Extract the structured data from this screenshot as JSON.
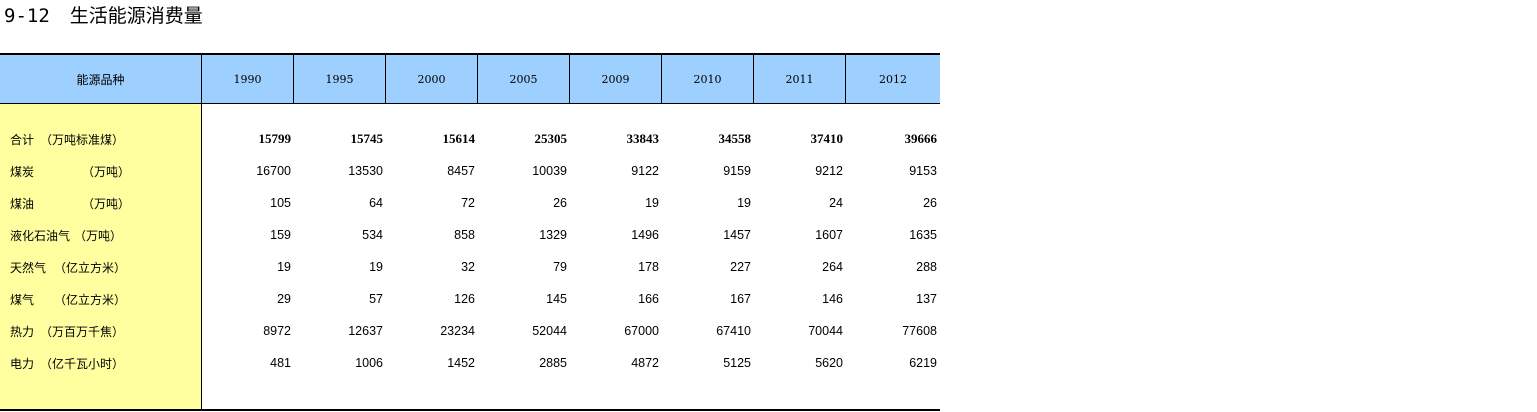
{
  "title": {
    "number": "9-12",
    "text": "生活能源消费量"
  },
  "table": {
    "corner": "能源品种",
    "years": [
      "1990",
      "1995",
      "2000",
      "2005",
      "2009",
      "2010",
      "2011",
      "2012"
    ],
    "rows": [
      {
        "name": "合计",
        "unit": "（万吨标准煤）",
        "values": [
          "15799",
          "15745",
          "15614",
          "25305",
          "33843",
          "34558",
          "37410",
          "39666"
        ]
      },
      {
        "name": "煤炭",
        "unit": "（万吨）",
        "values": [
          "16700",
          "13530",
          "8457",
          "10039",
          "9122",
          "9159",
          "9212",
          "9153"
        ]
      },
      {
        "name": "煤油",
        "unit": "（万吨）",
        "values": [
          "105",
          "64",
          "72",
          "26",
          "19",
          "19",
          "24",
          "26"
        ]
      },
      {
        "name": "液化石油气",
        "unit": "（万吨）",
        "values": [
          "159",
          "534",
          "858",
          "1329",
          "1496",
          "1457",
          "1607",
          "1635"
        ]
      },
      {
        "name": "天然气",
        "unit": "（亿立方米）",
        "values": [
          "19",
          "19",
          "32",
          "79",
          "178",
          "227",
          "264",
          "288"
        ]
      },
      {
        "name": "煤气",
        "unit": "（亿立方米）",
        "values": [
          "29",
          "57",
          "126",
          "145",
          "166",
          "167",
          "146",
          "137"
        ]
      },
      {
        "name": "热力",
        "unit": "（万百万千焦）",
        "values": [
          "8972",
          "12637",
          "23234",
          "52044",
          "67000",
          "67410",
          "70044",
          "77608"
        ]
      },
      {
        "name": "电力",
        "unit": "（亿千瓦小时）",
        "values": [
          "481",
          "1006",
          "1452",
          "2885",
          "4872",
          "5125",
          "5620",
          "6219"
        ]
      }
    ]
  }
}
